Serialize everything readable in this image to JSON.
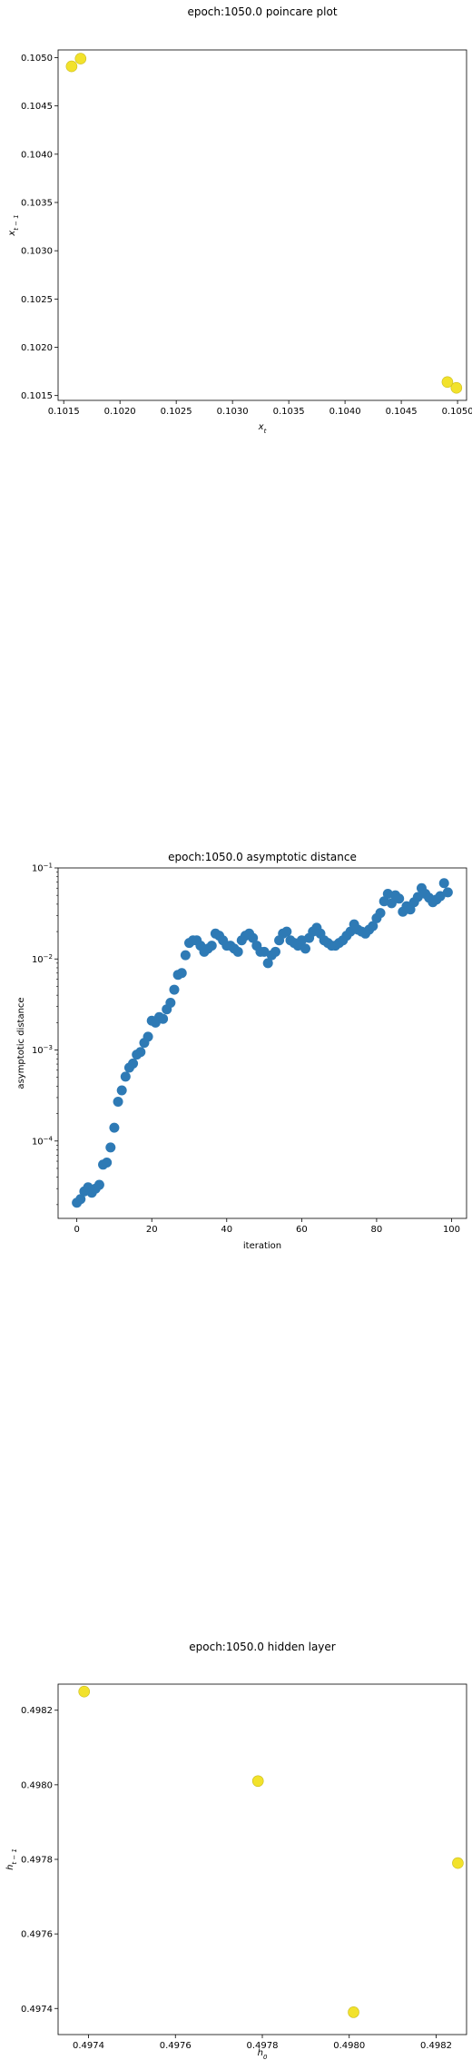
{
  "chart_data": [
    {
      "type": "scatter",
      "title": "epoch:1050.0 poincare plot",
      "xlabel": "x_t",
      "ylabel": "x_{t-1}",
      "xlim": [
        0.10145,
        0.10508
      ],
      "ylim": [
        0.10145,
        0.10508
      ],
      "xticks": [
        "0.1015",
        "0.1020",
        "0.1025",
        "0.1030",
        "0.1035",
        "0.1040",
        "0.1045",
        "0.1050"
      ],
      "yticks": [
        "0.1015",
        "0.1020",
        "0.1025",
        "0.1030",
        "0.1035",
        "0.1040",
        "0.1045",
        "0.1050"
      ],
      "marker_color": "#f2e22b",
      "points": [
        {
          "x": 0.10157,
          "y": 0.10491
        },
        {
          "x": 0.10165,
          "y": 0.10499
        },
        {
          "x": 0.10491,
          "y": 0.10164
        },
        {
          "x": 0.10499,
          "y": 0.10158
        }
      ]
    },
    {
      "type": "scatter",
      "title": "epoch:1050.0 asymptotic distance",
      "xlabel": "iteration",
      "ylabel": "asymptotic distance",
      "xlim": [
        -5,
        104
      ],
      "ylim_log10": [
        -4.85,
        -1.0
      ],
      "yscale": "log",
      "xticks": [
        "0",
        "20",
        "40",
        "60",
        "80",
        "100"
      ],
      "yticks": [
        "10^{-4}",
        "10^{-3}",
        "10^{-2}",
        "10^{-1}"
      ],
      "marker_color": "#2e7ab5",
      "x": [
        0,
        1,
        2,
        3,
        4,
        5,
        6,
        7,
        8,
        9,
        10,
        11,
        12,
        13,
        14,
        15,
        16,
        17,
        18,
        19,
        20,
        21,
        22,
        23,
        24,
        25,
        26,
        27,
        28,
        29,
        30,
        31,
        32,
        33,
        34,
        35,
        36,
        37,
        38,
        39,
        40,
        41,
        42,
        43,
        44,
        45,
        46,
        47,
        48,
        49,
        50,
        51,
        52,
        53,
        54,
        55,
        56,
        57,
        58,
        59,
        60,
        61,
        62,
        63,
        64,
        65,
        66,
        67,
        68,
        69,
        70,
        71,
        72,
        73,
        74,
        75,
        76,
        77,
        78,
        79,
        80,
        81,
        82,
        83,
        84,
        85,
        86,
        87,
        88,
        89,
        90,
        91,
        92,
        93,
        94,
        95,
        96,
        97,
        98,
        99
      ],
      "values": [
        2.1e-05,
        2.3e-05,
        2.8e-05,
        3.1e-05,
        2.7e-05,
        3e-05,
        3.3e-05,
        5.5e-05,
        5.8e-05,
        8.5e-05,
        0.00014,
        0.00027,
        0.00036,
        0.00051,
        0.00064,
        0.00071,
        0.00089,
        0.00095,
        0.0012,
        0.0014,
        0.0021,
        0.002,
        0.0023,
        0.0022,
        0.0028,
        0.0033,
        0.0046,
        0.0067,
        0.007,
        0.011,
        0.015,
        0.016,
        0.016,
        0.014,
        0.012,
        0.013,
        0.014,
        0.019,
        0.018,
        0.016,
        0.014,
        0.014,
        0.013,
        0.012,
        0.016,
        0.018,
        0.019,
        0.017,
        0.014,
        0.012,
        0.012,
        0.009,
        0.011,
        0.012,
        0.016,
        0.019,
        0.02,
        0.016,
        0.015,
        0.014,
        0.016,
        0.013,
        0.017,
        0.02,
        0.022,
        0.019,
        0.016,
        0.015,
        0.014,
        0.014,
        0.015,
        0.016,
        0.018,
        0.02,
        0.024,
        0.021,
        0.02,
        0.019,
        0.021,
        0.023,
        0.028,
        0.032,
        0.043,
        0.052,
        0.041,
        0.05,
        0.046,
        0.033,
        0.038,
        0.035,
        0.042,
        0.048,
        0.06,
        0.052,
        0.047,
        0.042,
        0.045,
        0.049,
        0.068,
        0.054
      ]
    },
    {
      "type": "scatter",
      "title": "epoch:1050.0 hidden layer",
      "xlabel": "h_0",
      "ylabel": "h_{t-1}",
      "xlim": [
        0.49733,
        0.49827
      ],
      "ylim": [
        0.49733,
        0.49827
      ],
      "xticks": [
        "0.4974",
        "0.4976",
        "0.4978",
        "0.4980",
        "0.4982"
      ],
      "yticks": [
        "0.4974",
        "0.4976",
        "0.4978",
        "0.4980",
        "0.4982"
      ],
      "marker_color": "#f2e22b",
      "points": [
        {
          "x": 0.49739,
          "y": 0.49825
        },
        {
          "x": 0.49779,
          "y": 0.49801
        },
        {
          "x": 0.49801,
          "y": 0.49739
        },
        {
          "x": 0.49825,
          "y": 0.49779
        }
      ]
    }
  ]
}
